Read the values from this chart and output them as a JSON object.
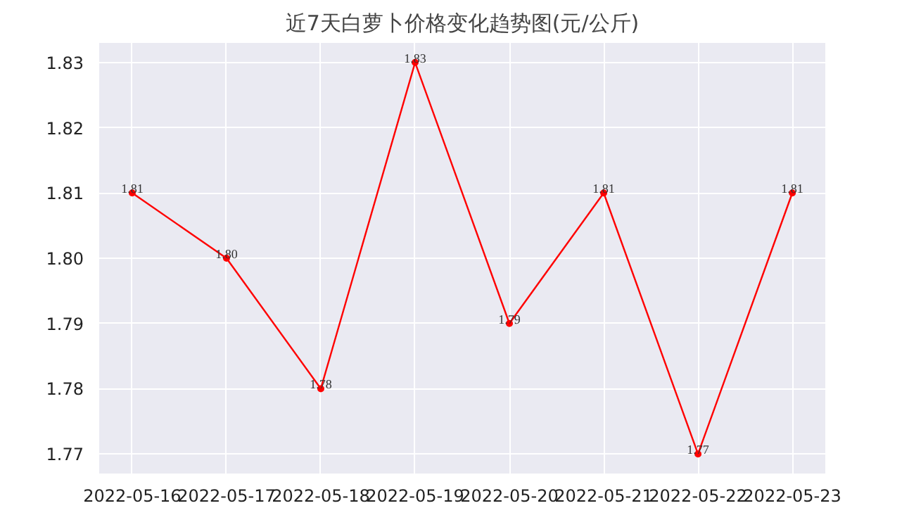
{
  "chart_data": {
    "type": "line",
    "title": "近7天白萝卜价格变化趋势图(元/公斤)",
    "categories": [
      "2022-05-16",
      "2022-05-17",
      "2022-05-18",
      "2022-05-19",
      "2022-05-20",
      "2022-05-21",
      "2022-05-22",
      "2022-05-23"
    ],
    "series": [
      {
        "color": "#ff0000",
        "values": [
          1.81,
          1.8,
          1.78,
          1.83,
          1.79,
          1.81,
          1.77,
          1.81
        ],
        "value_labels": [
          "1.81",
          "1.80",
          "1.78",
          "1.83",
          "1.79",
          "1.81",
          "1.77",
          "1.81"
        ]
      }
    ],
    "ylim": [
      1.767,
      1.833
    ],
    "yticks": [
      {
        "value": 1.77,
        "label": "1.77"
      },
      {
        "value": 1.78,
        "label": "1.78"
      },
      {
        "value": 1.79,
        "label": "1.79"
      },
      {
        "value": 1.8,
        "label": "1.80"
      },
      {
        "value": 1.81,
        "label": "1.81"
      },
      {
        "value": 1.82,
        "label": "1.82"
      },
      {
        "value": 1.83,
        "label": "1.83"
      }
    ],
    "grid": true,
    "marker": "circle",
    "line_style": "solid"
  }
}
